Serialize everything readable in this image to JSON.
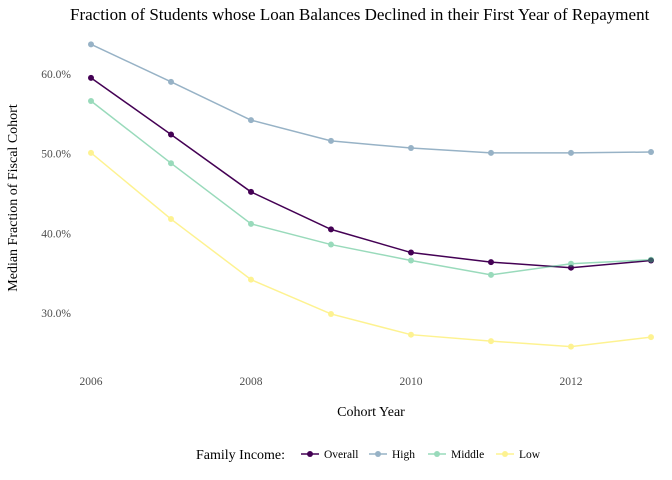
{
  "chart_data": {
    "type": "line",
    "title": "Fraction of Students whose Loan Balances Declined in their First Year of Repayment",
    "xlabel": "Cohort Year",
    "ylabel": "Median Fraction of Fiscal Cohort",
    "x": [
      2006,
      2007,
      2008,
      2009,
      2010,
      2011,
      2012,
      2013
    ],
    "xticks": [
      2006,
      2008,
      2010,
      2012
    ],
    "yticks": [
      0.3,
      0.4,
      0.5,
      0.6
    ],
    "ytick_labels": [
      "30.0%",
      "40.0%",
      "50.0%",
      "60.0%"
    ],
    "xlim": [
      2005.8,
      2013.2
    ],
    "ylim": [
      0.235,
      0.655
    ],
    "grid": false,
    "legend": {
      "title": "Family Income:",
      "placement": "bottom"
    },
    "series": [
      {
        "name": "Overall",
        "color": "#440154",
        "opacity": 1.0,
        "values": [
          0.595,
          0.524,
          0.452,
          0.405,
          0.376,
          0.364,
          0.357,
          0.366
        ]
      },
      {
        "name": "High",
        "color": "#31688e",
        "opacity": 0.5,
        "values": [
          0.637,
          0.59,
          0.542,
          0.516,
          0.507,
          0.501,
          0.501,
          0.502
        ]
      },
      {
        "name": "Middle",
        "color": "#35b779",
        "opacity": 0.5,
        "values": [
          0.566,
          0.488,
          0.412,
          0.386,
          0.366,
          0.348,
          0.362,
          0.367
        ]
      },
      {
        "name": "Low",
        "color": "#fde725",
        "opacity": 0.5,
        "values": [
          0.501,
          0.418,
          0.342,
          0.299,
          0.273,
          0.265,
          0.258,
          0.27
        ]
      }
    ]
  }
}
